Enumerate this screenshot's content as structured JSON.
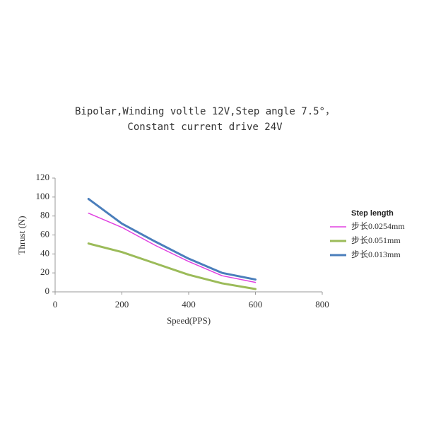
{
  "chart_data": {
    "type": "line",
    "title": [
      "Bipolar,Winding voltle 12V,Step angle 7.5°，",
      "Constant current drive 24V"
    ],
    "x_label": "Speed(PPS)",
    "y_label": "Thrust (N)",
    "x": [
      100,
      200,
      300,
      400,
      500,
      600
    ],
    "series": [
      {
        "name": "步长0.0254mm",
        "color": "#e040e0",
        "values": [
          83,
          68,
          49,
          32,
          17,
          10
        ]
      },
      {
        "name": "步长0.051mm",
        "color": "#9bbb59",
        "values": [
          51,
          42,
          30,
          18,
          9,
          3
        ]
      },
      {
        "name": "步长0.013mm",
        "color": "#4a7ebb",
        "values": [
          98,
          72,
          53,
          35,
          20,
          13
        ]
      }
    ],
    "legend_title": "Step length",
    "legend": "right",
    "xlim": [
      0,
      800
    ],
    "xticks": [
      0,
      200,
      400,
      600,
      800
    ],
    "ylim": [
      0,
      120
    ],
    "yticks": [
      0,
      20,
      40,
      60,
      80,
      100,
      120
    ],
    "grid": false
  }
}
